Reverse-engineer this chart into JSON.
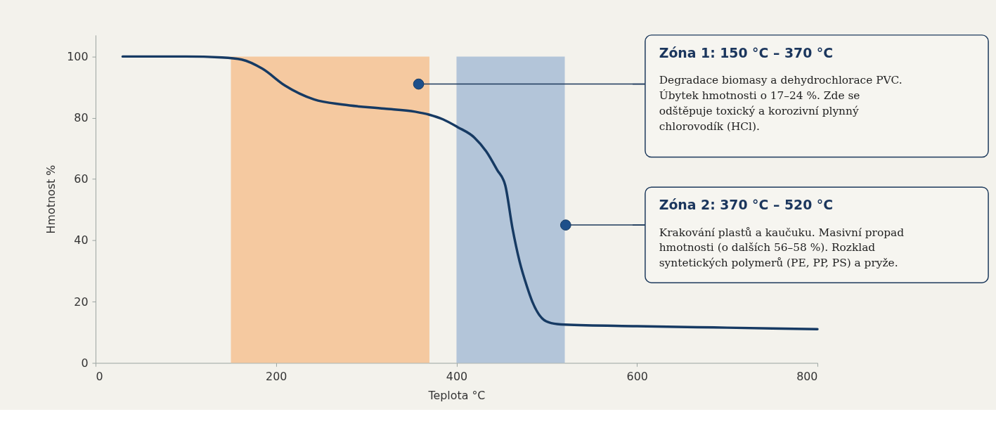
{
  "chart_data": {
    "type": "line",
    "xlabel": "Teplota °C",
    "ylabel": "Hmotnost %",
    "xlim": [
      0,
      800
    ],
    "xticks": [
      0,
      200,
      400,
      600,
      800
    ],
    "ylim": [
      0,
      107
    ],
    "yticks": [
      0,
      20,
      40,
      60,
      80,
      100
    ],
    "grid": false,
    "marker": "none",
    "line_style": "solid",
    "series": [
      {
        "color": "#163a63",
        "x": [
          30,
          100,
          140,
          162,
          185,
          210,
          242,
          274,
          320,
          354,
          370,
          385,
          401,
          420,
          433,
          445,
          454,
          462,
          470,
          478,
          484,
          495,
          505,
          520,
          600,
          700,
          800
        ],
        "values": [
          100,
          100,
          99.7,
          99,
          96,
          90.5,
          86,
          84.3,
          83,
          82,
          81,
          79.5,
          77,
          73.5,
          69,
          63,
          58,
          44,
          33,
          25,
          20,
          14.5,
          13,
          12.5,
          12,
          11.5,
          11
        ]
      }
    ],
    "bands": [
      {
        "axis": "x",
        "from": 150,
        "to": 370,
        "color": "#f5c9a0"
      },
      {
        "axis": "x",
        "from": 400,
        "to": 520,
        "color": "#b3c5d9"
      }
    ],
    "annotations": [
      "Zóna 1: 150 °C – 370 °C",
      {
        "text": "Degradace biomasy a dehydrochlorace PVC.\nÚbytek hmotnosti o 17–24 %. Zde se\nodštěpuje toxický a korozivní plynný\nchlorovodík (HCl).",
        "x": 358,
        "y": 91
      },
      "Zóna 2: 370 °C – 520 °C",
      {
        "text": "Krakování plastů a kaučuku. Masivní propad\nhmotnosti (o dalších 56–58 %). Rozklad\nsyntetických polymerů (PE, PP, PS) a pryže.",
        "x": 521,
        "y": 45
      }
    ]
  }
}
